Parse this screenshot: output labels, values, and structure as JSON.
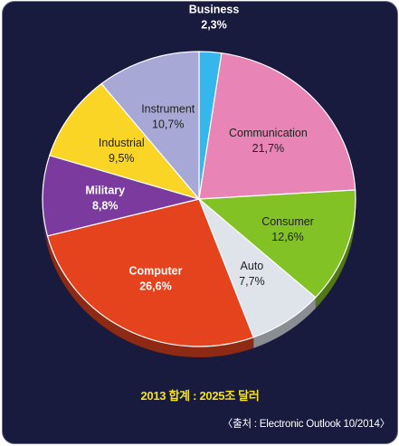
{
  "chart_data": {
    "type": "pie",
    "slices": [
      {
        "label": "Business",
        "value_label": "2,3%",
        "value": 2.3,
        "color": "#35b6ec",
        "text_color": "#ffffff",
        "bold": true
      },
      {
        "label": "Communication",
        "value_label": "21,7%",
        "value": 21.7,
        "color": "#e984b6",
        "text_color": "#222222",
        "bold": false
      },
      {
        "label": "Consumer",
        "value_label": "12,6%",
        "value": 12.6,
        "color": "#82c225",
        "text_color": "#222222",
        "bold": false
      },
      {
        "label": "Auto",
        "value_label": "7,7%",
        "value": 7.7,
        "color": "#dfe3ea",
        "text_color": "#222222",
        "bold": false
      },
      {
        "label": "Computer",
        "value_label": "26,6%",
        "value": 26.6,
        "color": "#e5431e",
        "text_color": "#ffffff",
        "bold": true
      },
      {
        "label": "Military",
        "value_label": "8,8%",
        "value": 8.8,
        "color": "#7b3b9e",
        "text_color": "#ffffff",
        "bold": true
      },
      {
        "label": "Industrial",
        "value_label": "9,5%",
        "value": 9.5,
        "color": "#fbd526",
        "text_color": "#222222",
        "bold": false
      },
      {
        "label": "Instrument",
        "value_label": "10,7%",
        "value": 10.7,
        "color": "#a7a8d6",
        "text_color": "#222222",
        "bold": false
      }
    ]
  },
  "caption": "2013 합계 : 2025조 달러",
  "source": "〈출처 : Electronic Outlook 10/2014〉"
}
